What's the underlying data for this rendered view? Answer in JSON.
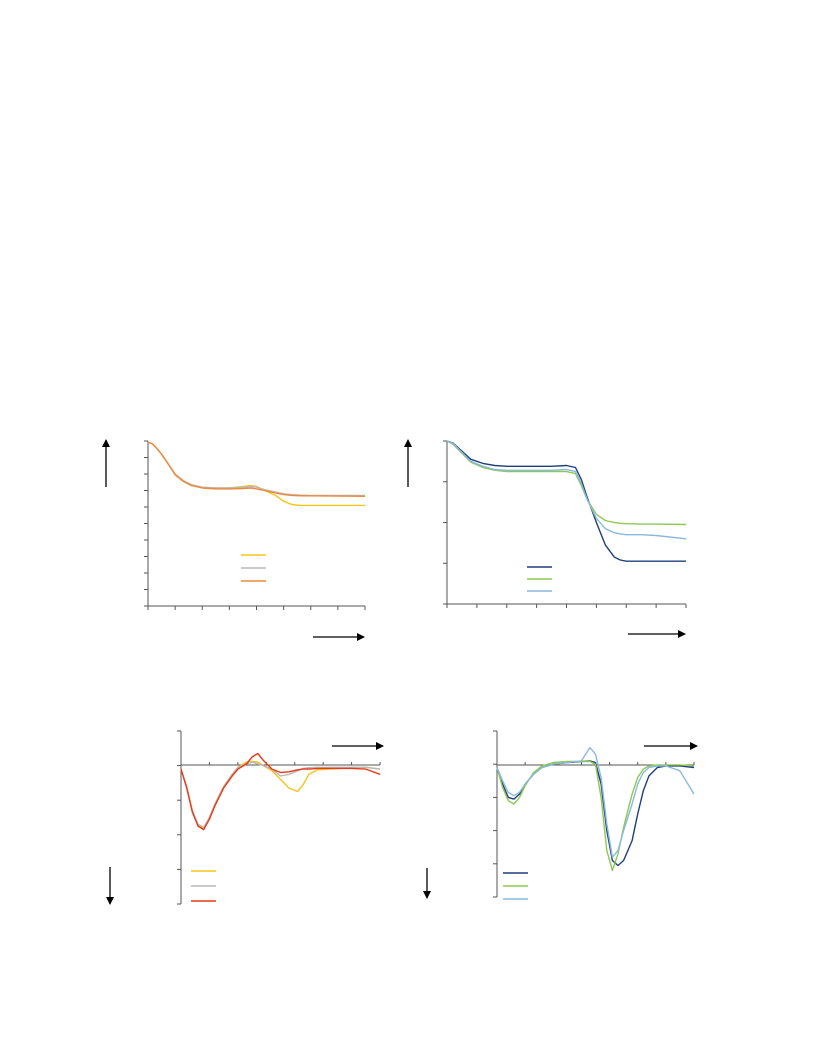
{
  "chart_data": [
    {
      "id": "top-left",
      "type": "line",
      "ylim": [
        0,
        10
      ],
      "xlim": [
        0,
        8
      ],
      "grid": false,
      "legend_position": "center",
      "series": [
        {
          "color": "#f5c518",
          "x": [
            0,
            0.15,
            0.3,
            0.5,
            0.75,
            1,
            1.3,
            1.6,
            2,
            2.5,
            3,
            3.5,
            3.8,
            4,
            4.3,
            4.7,
            5,
            5.3,
            5.6,
            6,
            7,
            8
          ],
          "y": [
            9.9,
            9.85,
            9.6,
            9.2,
            8.6,
            8.0,
            7.6,
            7.35,
            7.2,
            7.15,
            7.15,
            7.25,
            7.3,
            7.25,
            7.0,
            6.7,
            6.35,
            6.15,
            6.1,
            6.1,
            6.1,
            6.1
          ]
        },
        {
          "color": "#b8b8b8",
          "x": [
            0,
            0.15,
            0.3,
            0.5,
            0.75,
            1,
            1.3,
            1.6,
            2,
            2.5,
            3,
            3.5,
            3.8,
            4,
            4.3,
            4.7,
            5,
            5.3,
            5.6,
            6,
            7,
            8
          ],
          "y": [
            9.9,
            9.85,
            9.6,
            9.2,
            8.6,
            8.0,
            7.6,
            7.35,
            7.2,
            7.15,
            7.15,
            7.2,
            7.25,
            7.2,
            7.05,
            6.9,
            6.8,
            6.75,
            6.72,
            6.7,
            6.7,
            6.7
          ]
        },
        {
          "color": "#f0883a",
          "x": [
            0,
            0.15,
            0.3,
            0.5,
            0.75,
            1,
            1.3,
            1.6,
            2,
            2.5,
            3,
            3.5,
            3.8,
            4,
            4.3,
            4.7,
            5,
            5.3,
            5.6,
            6,
            7,
            8
          ],
          "y": [
            9.9,
            9.85,
            9.6,
            9.2,
            8.6,
            7.95,
            7.55,
            7.3,
            7.15,
            7.1,
            7.1,
            7.12,
            7.15,
            7.1,
            7.0,
            6.85,
            6.75,
            6.7,
            6.68,
            6.68,
            6.66,
            6.65
          ]
        }
      ]
    },
    {
      "id": "top-right",
      "type": "line",
      "ylim": [
        0,
        4
      ],
      "xlim": [
        0,
        8
      ],
      "grid": false,
      "legend_position": "center",
      "series": [
        {
          "color": "#1f3f7a",
          "x": [
            0,
            0.2,
            0.5,
            0.8,
            1.2,
            1.6,
            2,
            2.5,
            3,
            3.5,
            4,
            4.3,
            4.5,
            4.7,
            5,
            5.3,
            5.6,
            5.8,
            6,
            6.5,
            7,
            8
          ],
          "y": [
            4.0,
            3.95,
            3.75,
            3.55,
            3.45,
            3.4,
            3.38,
            3.38,
            3.38,
            3.38,
            3.4,
            3.35,
            3.05,
            2.6,
            2.0,
            1.45,
            1.15,
            1.08,
            1.05,
            1.05,
            1.05,
            1.05
          ]
        },
        {
          "color": "#8fc94f",
          "x": [
            0,
            0.2,
            0.5,
            0.8,
            1.2,
            1.6,
            2,
            2.5,
            3,
            3.5,
            4,
            4.3,
            4.5,
            4.7,
            5,
            5.3,
            5.6,
            5.8,
            6,
            6.5,
            7,
            8
          ],
          "y": [
            4.0,
            3.92,
            3.7,
            3.48,
            3.35,
            3.28,
            3.25,
            3.25,
            3.25,
            3.25,
            3.25,
            3.2,
            2.9,
            2.55,
            2.2,
            2.05,
            2.0,
            1.98,
            1.97,
            1.96,
            1.96,
            1.95
          ]
        },
        {
          "color": "#8ab8e0",
          "x": [
            0,
            0.2,
            0.5,
            0.8,
            1.2,
            1.6,
            2,
            2.5,
            3,
            3.5,
            4,
            4.3,
            4.5,
            4.7,
            5,
            5.3,
            5.6,
            5.8,
            6,
            6.5,
            7,
            8
          ],
          "y": [
            4.0,
            3.94,
            3.72,
            3.5,
            3.38,
            3.3,
            3.28,
            3.28,
            3.28,
            3.28,
            3.3,
            3.25,
            2.95,
            2.55,
            2.1,
            1.85,
            1.75,
            1.72,
            1.7,
            1.7,
            1.68,
            1.6
          ]
        }
      ]
    },
    {
      "id": "bottom-left",
      "type": "line",
      "ylim": [
        -4,
        1
      ],
      "xlim": [
        0,
        7
      ],
      "grid": false,
      "legend_position": "bottom-left",
      "series": [
        {
          "color": "#f5c518",
          "x": [
            0,
            0.2,
            0.4,
            0.6,
            0.8,
            1,
            1.2,
            1.5,
            1.8,
            2,
            2.3,
            2.5,
            2.7,
            2.9,
            3.2,
            3.5,
            3.8,
            4.1,
            4.3,
            4.5,
            4.8,
            5.2,
            5.6,
            6,
            6.5,
            7
          ],
          "y": [
            -0.1,
            -0.6,
            -1.3,
            -1.75,
            -1.8,
            -1.5,
            -1.1,
            -0.6,
            -0.25,
            -0.05,
            0.1,
            0.12,
            0.1,
            0.0,
            -0.15,
            -0.4,
            -0.65,
            -0.75,
            -0.55,
            -0.25,
            -0.12,
            -0.1,
            -0.08,
            -0.05,
            -0.05,
            -0.1
          ]
        },
        {
          "color": "#b8b8b8",
          "x": [
            0,
            0.2,
            0.4,
            0.6,
            0.8,
            1,
            1.2,
            1.5,
            1.8,
            2,
            2.3,
            2.5,
            2.7,
            2.9,
            3.2,
            3.5,
            3.8,
            4.1,
            4.3,
            4.5,
            4.8,
            5.2,
            5.6,
            6,
            6.5,
            7
          ],
          "y": [
            -0.1,
            -0.6,
            -1.3,
            -1.7,
            -1.78,
            -1.5,
            -1.1,
            -0.6,
            -0.25,
            -0.05,
            0.05,
            0.1,
            0.05,
            0.0,
            -0.1,
            -0.3,
            -0.25,
            -0.15,
            -0.08,
            -0.06,
            -0.05,
            -0.05,
            -0.05,
            -0.05,
            -0.05,
            -0.1
          ]
        },
        {
          "color": "#e83a1a",
          "x": [
            0,
            0.2,
            0.4,
            0.6,
            0.8,
            1,
            1.2,
            1.5,
            1.8,
            2,
            2.3,
            2.5,
            2.7,
            2.9,
            3.2,
            3.5,
            3.8,
            4.1,
            4.3,
            4.5,
            4.8,
            5.2,
            5.6,
            6,
            6.5,
            7
          ],
          "y": [
            -0.1,
            -0.65,
            -1.35,
            -1.75,
            -1.85,
            -1.55,
            -1.15,
            -0.65,
            -0.3,
            -0.1,
            0.05,
            0.25,
            0.35,
            0.15,
            -0.1,
            -0.2,
            -0.18,
            -0.12,
            -0.1,
            -0.1,
            -0.08,
            -0.08,
            -0.08,
            -0.08,
            -0.1,
            -0.25
          ]
        }
      ]
    },
    {
      "id": "bottom-right",
      "type": "line",
      "ylim": [
        -4,
        1
      ],
      "xlim": [
        0,
        7
      ],
      "grid": false,
      "legend_position": "bottom-left",
      "series": [
        {
          "color": "#1f3f7a",
          "x": [
            0,
            0.2,
            0.4,
            0.6,
            0.8,
            1,
            1.3,
            1.6,
            2,
            2.5,
            3,
            3.3,
            3.5,
            3.7,
            3.9,
            4.1,
            4.3,
            4.5,
            4.8,
            5,
            5.2,
            5.4,
            5.7,
            6,
            6.5,
            7
          ],
          "y": [
            -0.1,
            -0.6,
            -1.0,
            -1.05,
            -0.9,
            -0.6,
            -0.3,
            -0.1,
            0.0,
            0.05,
            0.08,
            0.1,
            0.05,
            -0.6,
            -2.0,
            -2.9,
            -3.05,
            -2.9,
            -2.3,
            -1.5,
            -0.8,
            -0.35,
            -0.1,
            -0.05,
            -0.05,
            -0.1
          ]
        },
        {
          "color": "#8fc94f",
          "x": [
            0,
            0.2,
            0.4,
            0.6,
            0.8,
            1,
            1.3,
            1.6,
            2,
            2.5,
            3,
            3.3,
            3.5,
            3.7,
            3.9,
            4.1,
            4.3,
            4.5,
            4.8,
            5,
            5.2,
            5.4,
            5.7,
            6,
            6.5,
            7
          ],
          "y": [
            -0.1,
            -0.7,
            -1.1,
            -1.2,
            -1.0,
            -0.65,
            -0.25,
            -0.05,
            0.05,
            0.08,
            0.08,
            0.08,
            0.0,
            -1.0,
            -2.6,
            -3.2,
            -2.7,
            -1.9,
            -0.9,
            -0.4,
            -0.15,
            -0.05,
            -0.02,
            -0.02,
            -0.02,
            -0.05
          ]
        },
        {
          "color": "#8ab8e0",
          "x": [
            0,
            0.2,
            0.4,
            0.6,
            0.8,
            1,
            1.3,
            1.6,
            2,
            2.5,
            3,
            3.3,
            3.5,
            3.7,
            3.9,
            4.1,
            4.3,
            4.5,
            4.8,
            5,
            5.2,
            5.4,
            5.7,
            6,
            6.5,
            7
          ],
          "y": [
            -0.1,
            -0.5,
            -0.85,
            -0.95,
            -0.85,
            -0.6,
            -0.3,
            -0.1,
            0.0,
            0.05,
            0.1,
            0.5,
            0.3,
            -0.4,
            -1.8,
            -2.8,
            -2.6,
            -2.0,
            -1.2,
            -0.6,
            -0.25,
            -0.1,
            -0.05,
            -0.05,
            -0.2,
            -0.9
          ]
        }
      ]
    }
  ]
}
